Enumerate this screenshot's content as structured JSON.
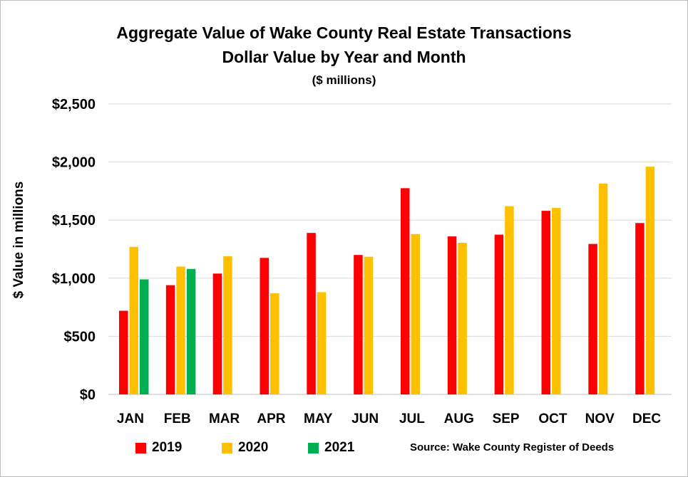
{
  "chart_data": {
    "type": "bar",
    "title": "Aggregate Value of Wake County Real Estate Transactions",
    "subtitle": "Dollar Value by Year and Month",
    "units": "($ millions)",
    "ylabel": "$ Value in millions",
    "xlabel": "",
    "ylim": [
      0,
      2500
    ],
    "yticks": [
      0,
      500,
      1000,
      1500,
      2000,
      2500
    ],
    "ytick_labels": [
      "$0",
      "$500",
      "$1,000",
      "$1,500",
      "$2,000",
      "$2,500"
    ],
    "grid": true,
    "categories": [
      "JAN",
      "FEB",
      "MAR",
      "APR",
      "MAY",
      "JUN",
      "JUL",
      "AUG",
      "SEP",
      "OCT",
      "NOV",
      "DEC"
    ],
    "series": [
      {
        "name": "2019",
        "color": "#ff0000",
        "values": [
          720,
          940,
          1040,
          1175,
          1390,
          1200,
          1775,
          1360,
          1375,
          1580,
          1295,
          1475
        ]
      },
      {
        "name": "2020",
        "color": "#ffc000",
        "values": [
          1270,
          1100,
          1190,
          870,
          880,
          1185,
          1380,
          1305,
          1620,
          1605,
          1815,
          1960
        ]
      },
      {
        "name": "2021",
        "color": "#00b050",
        "values": [
          990,
          1080,
          null,
          null,
          null,
          null,
          null,
          null,
          null,
          null,
          null,
          null
        ]
      }
    ],
    "legend_position": "bottom",
    "source": "Source: Wake County Register of Deeds"
  }
}
